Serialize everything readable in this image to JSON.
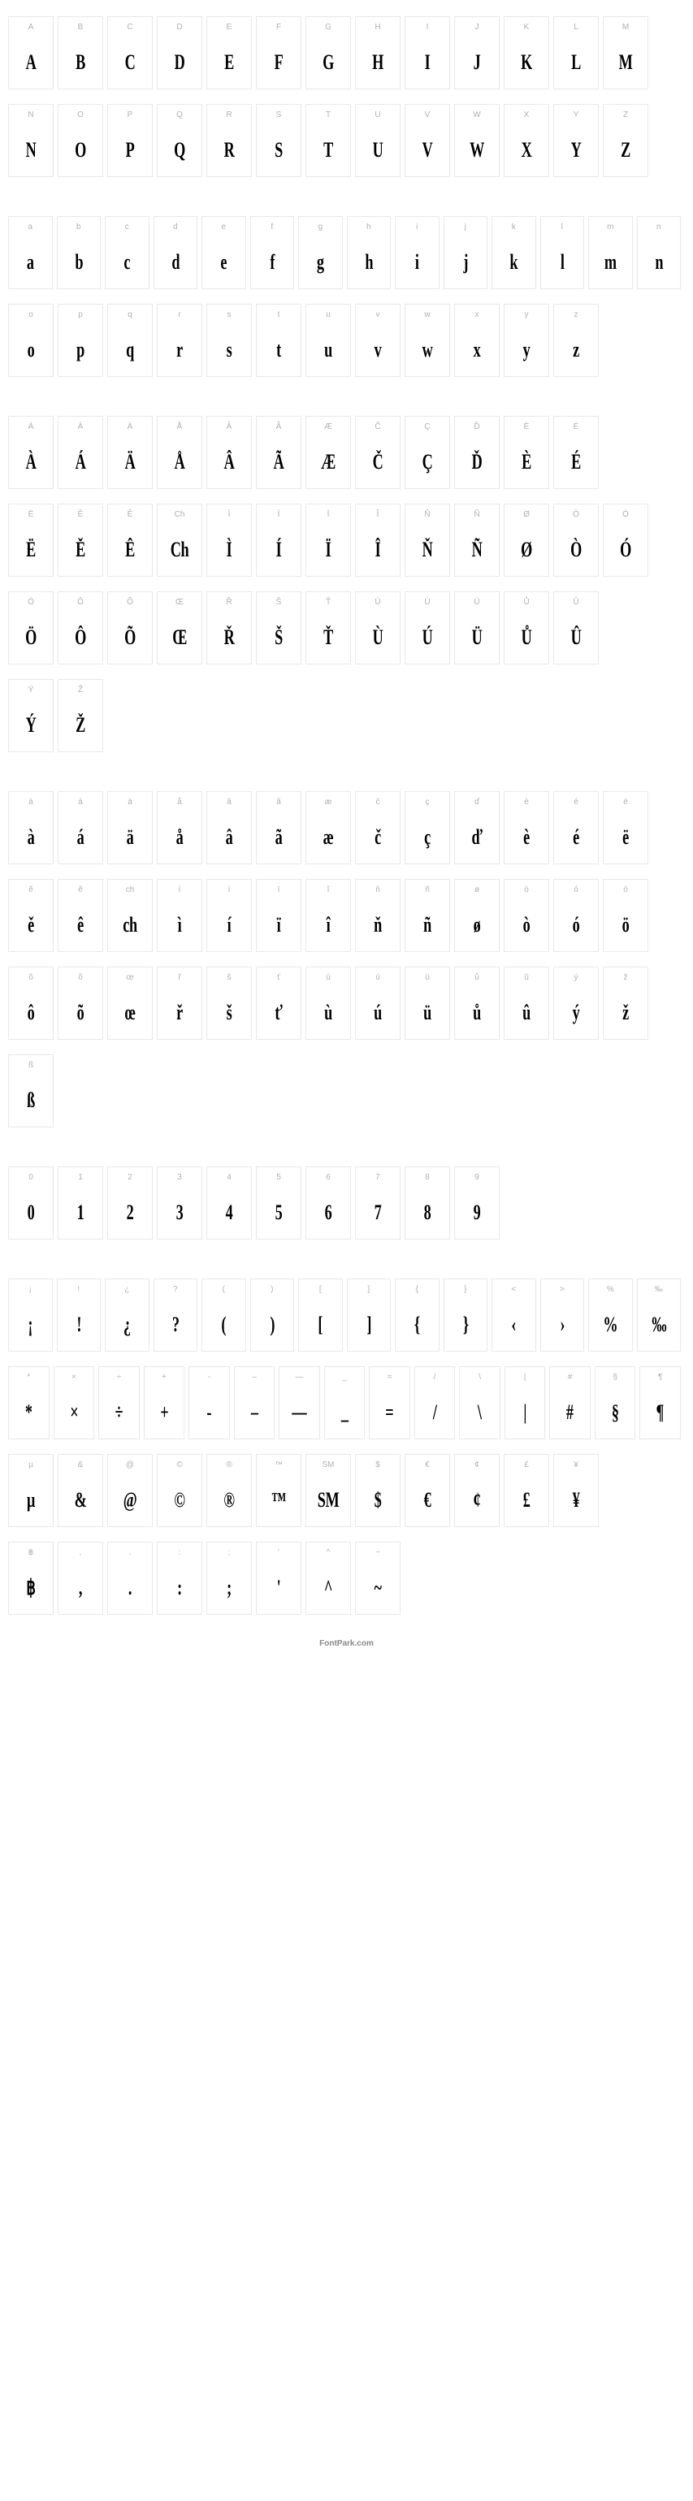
{
  "footer": "FontPark.com",
  "cell_style": {
    "width": 56,
    "height": 90,
    "border_color": "#e8e8e8",
    "label_color": "#b0b0b0",
    "label_fontsize": 10,
    "glyph_color": "#000000",
    "glyph_fontsize": 26,
    "glyph_scale_x": 0.7
  },
  "rows": [
    {
      "cells": [
        {
          "label": "A",
          "glyph": "A"
        },
        {
          "label": "B",
          "glyph": "B"
        },
        {
          "label": "C",
          "glyph": "C"
        },
        {
          "label": "D",
          "glyph": "D"
        },
        {
          "label": "E",
          "glyph": "E"
        },
        {
          "label": "F",
          "glyph": "F"
        },
        {
          "label": "G",
          "glyph": "G"
        },
        {
          "label": "H",
          "glyph": "H"
        },
        {
          "label": "I",
          "glyph": "I"
        },
        {
          "label": "J",
          "glyph": "J"
        },
        {
          "label": "K",
          "glyph": "K"
        },
        {
          "label": "L",
          "glyph": "L"
        },
        {
          "label": "M",
          "glyph": "M"
        }
      ]
    },
    {
      "cells": [
        {
          "label": "N",
          "glyph": "N"
        },
        {
          "label": "O",
          "glyph": "O"
        },
        {
          "label": "P",
          "glyph": "P"
        },
        {
          "label": "Q",
          "glyph": "Q"
        },
        {
          "label": "R",
          "glyph": "R"
        },
        {
          "label": "S",
          "glyph": "S"
        },
        {
          "label": "T",
          "glyph": "T"
        },
        {
          "label": "U",
          "glyph": "U"
        },
        {
          "label": "V",
          "glyph": "V"
        },
        {
          "label": "W",
          "glyph": "W"
        },
        {
          "label": "X",
          "glyph": "X"
        },
        {
          "label": "Y",
          "glyph": "Y"
        },
        {
          "label": "Z",
          "glyph": "Z"
        }
      ]
    },
    {
      "gap": true
    },
    {
      "cells": [
        {
          "label": "a",
          "glyph": "a"
        },
        {
          "label": "b",
          "glyph": "b"
        },
        {
          "label": "c",
          "glyph": "c"
        },
        {
          "label": "d",
          "glyph": "d"
        },
        {
          "label": "e",
          "glyph": "e"
        },
        {
          "label": "f",
          "glyph": "f"
        },
        {
          "label": "g",
          "glyph": "g"
        },
        {
          "label": "h",
          "glyph": "h"
        },
        {
          "label": "i",
          "glyph": "i"
        },
        {
          "label": "j",
          "glyph": "j"
        },
        {
          "label": "k",
          "glyph": "k"
        },
        {
          "label": "l",
          "glyph": "l"
        },
        {
          "label": "m",
          "glyph": "m"
        },
        {
          "label": "n",
          "glyph": "n"
        }
      ]
    },
    {
      "cells": [
        {
          "label": "o",
          "glyph": "o"
        },
        {
          "label": "p",
          "glyph": "p"
        },
        {
          "label": "q",
          "glyph": "q"
        },
        {
          "label": "r",
          "glyph": "r"
        },
        {
          "label": "s",
          "glyph": "s"
        },
        {
          "label": "t",
          "glyph": "t"
        },
        {
          "label": "u",
          "glyph": "u"
        },
        {
          "label": "v",
          "glyph": "v"
        },
        {
          "label": "w",
          "glyph": "w"
        },
        {
          "label": "x",
          "glyph": "x"
        },
        {
          "label": "y",
          "glyph": "y"
        },
        {
          "label": "z",
          "glyph": "z"
        }
      ]
    },
    {
      "gap": true
    },
    {
      "cells": [
        {
          "label": "À",
          "glyph": "À"
        },
        {
          "label": "Á",
          "glyph": "Á"
        },
        {
          "label": "Ä",
          "glyph": "Ä"
        },
        {
          "label": "Å",
          "glyph": "Å"
        },
        {
          "label": "Â",
          "glyph": "Â"
        },
        {
          "label": "Ã",
          "glyph": "Ã"
        },
        {
          "label": "Æ",
          "glyph": "Æ"
        },
        {
          "label": "Č",
          "glyph": "Č"
        },
        {
          "label": "Ç",
          "glyph": "Ç"
        },
        {
          "label": "Ď",
          "glyph": "Ď"
        },
        {
          "label": "È",
          "glyph": "È"
        },
        {
          "label": "É",
          "glyph": "É"
        }
      ]
    },
    {
      "cells": [
        {
          "label": "Ë",
          "glyph": "Ë"
        },
        {
          "label": "Ě",
          "glyph": "Ě"
        },
        {
          "label": "Ê",
          "glyph": "Ê"
        },
        {
          "label": "Ch",
          "glyph": "Ch"
        },
        {
          "label": "Ì",
          "glyph": "Ì"
        },
        {
          "label": "Í",
          "glyph": "Í"
        },
        {
          "label": "Ï",
          "glyph": "Ï"
        },
        {
          "label": "Î",
          "glyph": "Î"
        },
        {
          "label": "Ň",
          "glyph": "Ň"
        },
        {
          "label": "Ñ",
          "glyph": "Ñ"
        },
        {
          "label": "Ø",
          "glyph": "Ø"
        },
        {
          "label": "Ò",
          "glyph": "Ò"
        },
        {
          "label": "Ó",
          "glyph": "Ó"
        }
      ]
    },
    {
      "cells": [
        {
          "label": "Ö",
          "glyph": "Ö"
        },
        {
          "label": "Ô",
          "glyph": "Ô"
        },
        {
          "label": "Õ",
          "glyph": "Õ"
        },
        {
          "label": "Œ",
          "glyph": "Œ"
        },
        {
          "label": "Ř",
          "glyph": "Ř"
        },
        {
          "label": "Š",
          "glyph": "Š"
        },
        {
          "label": "Ť",
          "glyph": "Ť"
        },
        {
          "label": "Ù",
          "glyph": "Ù"
        },
        {
          "label": "Ú",
          "glyph": "Ú"
        },
        {
          "label": "Ü",
          "glyph": "Ü"
        },
        {
          "label": "Ů",
          "glyph": "Ů"
        },
        {
          "label": "Û",
          "glyph": "Û"
        }
      ]
    },
    {
      "cells": [
        {
          "label": "Ý",
          "glyph": "Ý"
        },
        {
          "label": "Ž",
          "glyph": "Ž"
        }
      ]
    },
    {
      "gap": true
    },
    {
      "cells": [
        {
          "label": "à",
          "glyph": "à"
        },
        {
          "label": "á",
          "glyph": "á"
        },
        {
          "label": "ä",
          "glyph": "ä"
        },
        {
          "label": "å",
          "glyph": "å"
        },
        {
          "label": "â",
          "glyph": "â"
        },
        {
          "label": "ã",
          "glyph": "ã"
        },
        {
          "label": "æ",
          "glyph": "æ"
        },
        {
          "label": "č",
          "glyph": "č"
        },
        {
          "label": "ç",
          "glyph": "ç"
        },
        {
          "label": "ď",
          "glyph": "ď"
        },
        {
          "label": "è",
          "glyph": "è"
        },
        {
          "label": "é",
          "glyph": "é"
        },
        {
          "label": "ë",
          "glyph": "ë"
        }
      ]
    },
    {
      "cells": [
        {
          "label": "ě",
          "glyph": "ě"
        },
        {
          "label": "ê",
          "glyph": "ê"
        },
        {
          "label": "ch",
          "glyph": "ch"
        },
        {
          "label": "ì",
          "glyph": "ì"
        },
        {
          "label": "í",
          "glyph": "í"
        },
        {
          "label": "ï",
          "glyph": "ï"
        },
        {
          "label": "î",
          "glyph": "î"
        },
        {
          "label": "ň",
          "glyph": "ň"
        },
        {
          "label": "ñ",
          "glyph": "ñ"
        },
        {
          "label": "ø",
          "glyph": "ø"
        },
        {
          "label": "ò",
          "glyph": "ò"
        },
        {
          "label": "ó",
          "glyph": "ó"
        },
        {
          "label": "ö",
          "glyph": "ö"
        }
      ]
    },
    {
      "cells": [
        {
          "label": "ô",
          "glyph": "ô"
        },
        {
          "label": "õ",
          "glyph": "õ"
        },
        {
          "label": "œ",
          "glyph": "œ"
        },
        {
          "label": "ř",
          "glyph": "ř"
        },
        {
          "label": "š",
          "glyph": "š"
        },
        {
          "label": "ť",
          "glyph": "ť"
        },
        {
          "label": "ù",
          "glyph": "ù"
        },
        {
          "label": "ú",
          "glyph": "ú"
        },
        {
          "label": "ü",
          "glyph": "ü"
        },
        {
          "label": "ů",
          "glyph": "ů"
        },
        {
          "label": "û",
          "glyph": "û"
        },
        {
          "label": "ý",
          "glyph": "ý"
        },
        {
          "label": "ž",
          "glyph": "ž"
        }
      ]
    },
    {
      "cells": [
        {
          "label": "ß",
          "glyph": "ß"
        }
      ]
    },
    {
      "gap": true
    },
    {
      "cells": [
        {
          "label": "0",
          "glyph": "0"
        },
        {
          "label": "1",
          "glyph": "1"
        },
        {
          "label": "2",
          "glyph": "2"
        },
        {
          "label": "3",
          "glyph": "3"
        },
        {
          "label": "4",
          "glyph": "4"
        },
        {
          "label": "5",
          "glyph": "5"
        },
        {
          "label": "6",
          "glyph": "6"
        },
        {
          "label": "7",
          "glyph": "7"
        },
        {
          "label": "8",
          "glyph": "8"
        },
        {
          "label": "9",
          "glyph": "9"
        }
      ]
    },
    {
      "gap": true
    },
    {
      "cells": [
        {
          "label": "¡",
          "glyph": "¡"
        },
        {
          "label": "!",
          "glyph": "!"
        },
        {
          "label": "¿",
          "glyph": "¿"
        },
        {
          "label": "?",
          "glyph": "?"
        },
        {
          "label": "(",
          "glyph": "("
        },
        {
          "label": ")",
          "glyph": ")"
        },
        {
          "label": "[",
          "glyph": "["
        },
        {
          "label": "]",
          "glyph": "]"
        },
        {
          "label": "{",
          "glyph": "{"
        },
        {
          "label": "}",
          "glyph": "}"
        },
        {
          "label": "<",
          "glyph": "‹"
        },
        {
          "label": ">",
          "glyph": "›"
        },
        {
          "label": "%",
          "glyph": "%"
        },
        {
          "label": "‰",
          "glyph": "‰"
        }
      ]
    },
    {
      "cells": [
        {
          "label": "*",
          "glyph": "*"
        },
        {
          "label": "×",
          "glyph": "×"
        },
        {
          "label": "÷",
          "glyph": "÷"
        },
        {
          "label": "+",
          "glyph": "+"
        },
        {
          "label": "-",
          "glyph": "-"
        },
        {
          "label": "–",
          "glyph": "–"
        },
        {
          "label": "—",
          "glyph": "—"
        },
        {
          "label": "_",
          "glyph": "_"
        },
        {
          "label": "=",
          "glyph": "="
        },
        {
          "label": "/",
          "glyph": "/"
        },
        {
          "label": "\\",
          "glyph": "\\"
        },
        {
          "label": "|",
          "glyph": "|"
        },
        {
          "label": "#",
          "glyph": "#"
        },
        {
          "label": "§",
          "glyph": "§"
        },
        {
          "label": "¶",
          "glyph": "¶"
        }
      ]
    },
    {
      "cells": [
        {
          "label": "µ",
          "glyph": "µ"
        },
        {
          "label": "&",
          "glyph": "&"
        },
        {
          "label": "@",
          "glyph": "@"
        },
        {
          "label": "©",
          "glyph": "©"
        },
        {
          "label": "®",
          "glyph": "®"
        },
        {
          "label": "™",
          "glyph": "™"
        },
        {
          "label": "SM",
          "glyph": "SM"
        },
        {
          "label": "$",
          "glyph": "$"
        },
        {
          "label": "€",
          "glyph": "€"
        },
        {
          "label": "¢",
          "glyph": "¢"
        },
        {
          "label": "£",
          "glyph": "£"
        },
        {
          "label": "¥",
          "glyph": "¥"
        }
      ]
    },
    {
      "cells": [
        {
          "label": "฿",
          "glyph": "฿"
        },
        {
          "label": ",",
          "glyph": ","
        },
        {
          "label": ".",
          "glyph": "."
        },
        {
          "label": ":",
          "glyph": ":"
        },
        {
          "label": ";",
          "glyph": ";"
        },
        {
          "label": "'",
          "glyph": "'"
        },
        {
          "label": "^",
          "glyph": "^"
        },
        {
          "label": "~",
          "glyph": "~"
        }
      ]
    }
  ]
}
